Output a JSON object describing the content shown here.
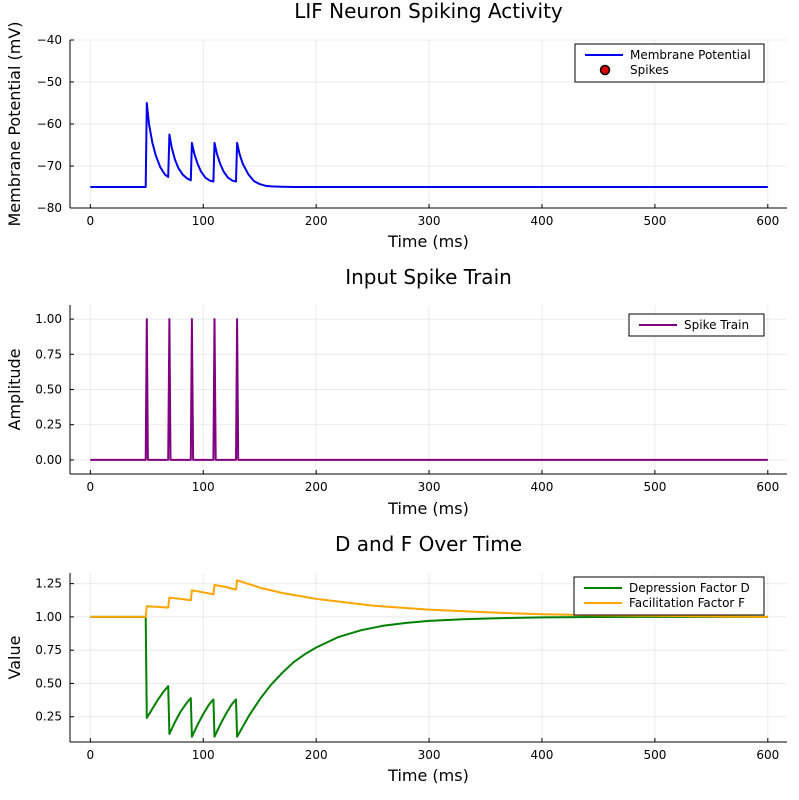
{
  "chart_data": [
    {
      "type": "line",
      "title": "LIF Neuron Spiking Activity",
      "xlabel": "Time (ms)",
      "ylabel": "Membrane Potential (mV)",
      "xlim": [
        -18,
        617
      ],
      "ylim": [
        -80,
        -40
      ],
      "xticks": [
        0,
        100,
        200,
        300,
        400,
        500,
        600
      ],
      "yticks": [
        -80,
        -70,
        -60,
        -50,
        -40
      ],
      "ytick_labels": [
        "−80",
        "−70",
        "−60",
        "−50",
        "−40"
      ],
      "grid": true,
      "legend_position": "top-right",
      "series": [
        {
          "name": "Membrane Potential",
          "color": "#0000ee",
          "x": [
            0,
            49,
            50,
            52,
            55,
            58,
            62,
            66,
            69,
            70,
            72,
            75,
            78,
            82,
            86,
            89,
            90,
            92,
            95,
            98,
            102,
            106,
            109,
            110,
            112,
            115,
            118,
            122,
            126,
            129,
            130,
            132,
            135,
            140,
            145,
            150,
            155,
            160,
            170,
            180,
            200,
            600
          ],
          "y": [
            -75,
            -75,
            -55,
            -60,
            -64.5,
            -67.5,
            -70.3,
            -72,
            -72.6,
            -62.5,
            -65.5,
            -68.5,
            -70.5,
            -72.1,
            -73,
            -73.4,
            -64.5,
            -67,
            -69.5,
            -71.3,
            -72.8,
            -73.5,
            -73.7,
            -64.5,
            -67,
            -69.5,
            -71.3,
            -72.8,
            -73.5,
            -73.7,
            -64.5,
            -67,
            -69.5,
            -72,
            -73.6,
            -74.3,
            -74.7,
            -74.85,
            -74.95,
            -75,
            -75,
            -75
          ]
        },
        {
          "name": "Spikes",
          "color": "#dd0000",
          "marker": "circle",
          "x": [],
          "y": []
        }
      ]
    },
    {
      "type": "line",
      "title": "Input Spike Train",
      "xlabel": "Time (ms)",
      "ylabel": "Amplitude",
      "xlim": [
        -18,
        617
      ],
      "ylim": [
        -0.1,
        1.1
      ],
      "xticks": [
        0,
        100,
        200,
        300,
        400,
        500,
        600
      ],
      "yticks": [
        0,
        0.25,
        0.5,
        0.75,
        1
      ],
      "ytick_labels": [
        "0.00",
        "0.25",
        "0.50",
        "0.75",
        "1.00"
      ],
      "grid": true,
      "legend_position": "top-right",
      "series": [
        {
          "name": "Spike Train",
          "color": "#800080",
          "x": [
            0,
            49,
            50,
            51,
            69,
            70,
            71,
            89,
            90,
            91,
            109,
            110,
            111,
            129,
            130,
            131,
            600
          ],
          "y": [
            0,
            0,
            1,
            0,
            0,
            1,
            0,
            0,
            1,
            0,
            0,
            1,
            0,
            0,
            1,
            0,
            0
          ]
        }
      ]
    },
    {
      "type": "line",
      "title": "D and F Over Time",
      "xlabel": "Time (ms)",
      "ylabel": "Value",
      "xlim": [
        -18,
        617
      ],
      "ylim": [
        0.06,
        1.33
      ],
      "xticks": [
        0,
        100,
        200,
        300,
        400,
        500,
        600
      ],
      "yticks": [
        0.25,
        0.5,
        0.75,
        1,
        1.25
      ],
      "ytick_labels": [
        "0.25",
        "0.50",
        "0.75",
        "1.00",
        "1.25"
      ],
      "grid": true,
      "legend_position": "top-right",
      "series": [
        {
          "name": "Depression Factor D",
          "color": "#008000",
          "x": [
            0,
            49,
            50,
            55,
            60,
            65,
            69,
            70,
            75,
            80,
            85,
            89,
            90,
            95,
            100,
            105,
            109,
            110,
            115,
            120,
            125,
            129,
            130,
            140,
            150,
            160,
            170,
            180,
            190,
            200,
            220,
            240,
            260,
            280,
            300,
            330,
            360,
            400,
            450,
            500,
            600
          ],
          "y": [
            1,
            1,
            0.24,
            0.31,
            0.38,
            0.44,
            0.48,
            0.12,
            0.21,
            0.29,
            0.35,
            0.39,
            0.1,
            0.19,
            0.27,
            0.34,
            0.38,
            0.1,
            0.19,
            0.27,
            0.34,
            0.38,
            0.1,
            0.25,
            0.38,
            0.49,
            0.58,
            0.66,
            0.72,
            0.77,
            0.85,
            0.9,
            0.935,
            0.955,
            0.97,
            0.983,
            0.99,
            0.996,
            0.999,
            1,
            1
          ]
        },
        {
          "name": "Facilitation Factor F",
          "color": "#ffa500",
          "x": [
            0,
            49,
            50,
            60,
            69,
            70,
            80,
            89,
            90,
            100,
            109,
            110,
            120,
            129,
            130,
            150,
            170,
            200,
            250,
            300,
            350,
            400,
            450,
            500,
            550,
            600
          ],
          "y": [
            1,
            1,
            1.08,
            1.075,
            1.07,
            1.145,
            1.135,
            1.125,
            1.2,
            1.185,
            1.17,
            1.24,
            1.225,
            1.205,
            1.275,
            1.22,
            1.18,
            1.135,
            1.085,
            1.055,
            1.035,
            1.02,
            1.012,
            1.008,
            1.004,
            1
          ]
        }
      ]
    }
  ]
}
